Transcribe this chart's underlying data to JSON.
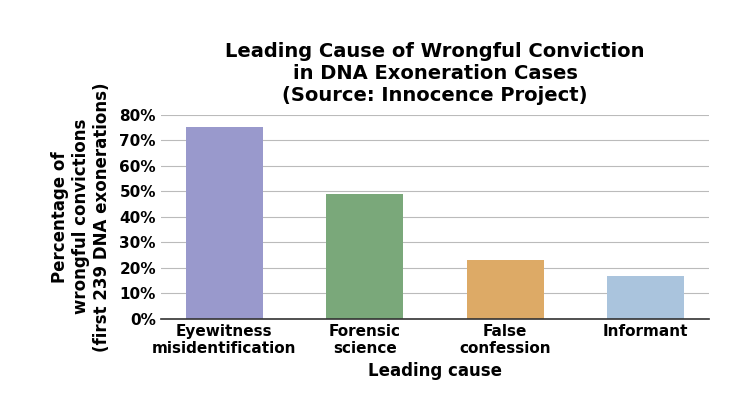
{
  "title": "Leading Cause of Wrongful Conviction\nin DNA Exoneration Cases\n(Source: Innocence Project)",
  "xlabel": "Leading cause",
  "ylabel": "Percentage of\nwrongful convictions\n(first 239 DNA exonerations)",
  "categories": [
    "Eyewitness\nmisidentification",
    "Forensic\nscience",
    "False\nconfession",
    "Informant"
  ],
  "values": [
    75,
    49,
    23,
    17
  ],
  "bar_colors": [
    "#9999cc",
    "#7aa87a",
    "#ddaa66",
    "#aac4dd"
  ],
  "ylim": [
    0,
    80
  ],
  "yticks": [
    0,
    10,
    20,
    30,
    40,
    50,
    60,
    70,
    80
  ],
  "title_fontsize": 14,
  "axis_label_fontsize": 12,
  "tick_fontsize": 11,
  "background_color": "#ffffff"
}
